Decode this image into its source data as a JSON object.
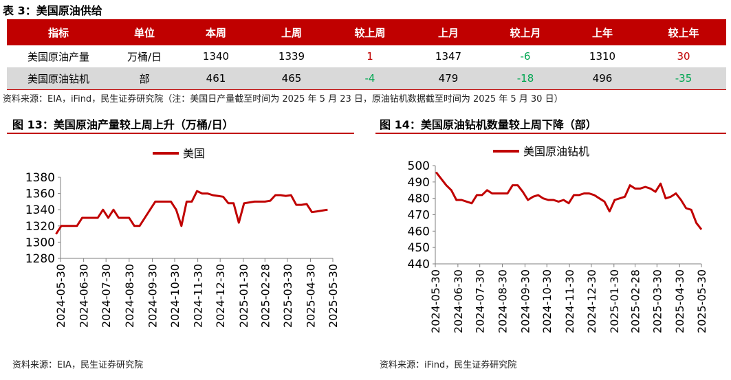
{
  "table": {
    "title": "表 3：美国原油供给",
    "headers": [
      "指标",
      "单位",
      "本周",
      "上周",
      "较上周",
      "上月",
      "较上月",
      "上年",
      "较上年"
    ],
    "rows": [
      [
        "美国原油产量",
        "万桶/日",
        "1340",
        "1339",
        "1",
        "1347",
        "-6",
        "1310",
        "30"
      ],
      [
        "美国原油钻机",
        "部",
        "461",
        "465",
        "-4",
        "479",
        "-18",
        "496",
        "-35"
      ]
    ],
    "note": "资料来源：EIA，iFind，民生证券研究院（注：美国日产量截至时间为 2025 年 5 月 23 日，原油钻机数据截至时间为 2025 年 5 月 30 日）"
  },
  "colors": {
    "accent": "#c00000",
    "positive": "#c00000",
    "negative": "#00a651",
    "row_alt": "#d9d9d9"
  },
  "chart_data": [
    {
      "type": "line",
      "title": "图 13：美国原油产量较上周上升（万桶/日）",
      "source": "资料来源：EIA，民生证券研究院",
      "x_ticks": [
        "2024-05-30",
        "2024-06-30",
        "2024-07-30",
        "2024-08-30",
        "2024-09-30",
        "2024-10-30",
        "2024-11-30",
        "2024-12-30",
        "2025-01-30",
        "2025-02-28",
        "2025-03-30",
        "2025-04-30",
        "2025-05-30"
      ],
      "ylim": [
        1280,
        1380
      ],
      "y_ticks": [
        1280,
        1300,
        1320,
        1340,
        1360,
        1380
      ],
      "legend_position": "top-center",
      "grid": false,
      "series": [
        {
          "name": "美国",
          "color": "#c00000",
          "x": [
            "2024-05-24",
            "2024-05-31",
            "2024-06-07",
            "2024-06-14",
            "2024-06-21",
            "2024-06-28",
            "2024-07-05",
            "2024-07-12",
            "2024-07-19",
            "2024-07-26",
            "2024-08-02",
            "2024-08-09",
            "2024-08-16",
            "2024-08-23",
            "2024-08-30",
            "2024-09-06",
            "2024-09-13",
            "2024-09-20",
            "2024-09-27",
            "2024-10-04",
            "2024-10-11",
            "2024-10-18",
            "2024-10-25",
            "2024-11-01",
            "2024-11-08",
            "2024-11-15",
            "2024-11-22",
            "2024-11-29",
            "2024-12-06",
            "2024-12-13",
            "2024-12-20",
            "2024-12-27",
            "2025-01-03",
            "2025-01-10",
            "2025-01-17",
            "2025-01-24",
            "2025-01-31",
            "2025-02-07",
            "2025-02-14",
            "2025-02-21",
            "2025-02-28",
            "2025-03-07",
            "2025-03-14",
            "2025-03-21",
            "2025-03-28",
            "2025-04-04",
            "2025-04-11",
            "2025-04-18",
            "2025-04-25",
            "2025-05-02",
            "2025-05-09",
            "2025-05-16",
            "2025-05-23"
          ],
          "values": [
            1310,
            1320,
            1320,
            1320,
            1320,
            1330,
            1330,
            1330,
            1330,
            1340,
            1330,
            1340,
            1330,
            1330,
            1330,
            1320,
            1320,
            1330,
            1340,
            1350,
            1350,
            1350,
            1350,
            1340,
            1320,
            1350,
            1350,
            1363,
            1360,
            1360,
            1358,
            1357,
            1356,
            1348,
            1348,
            1324,
            1348,
            1349,
            1350,
            1350,
            1350,
            1351,
            1358,
            1358,
            1357,
            1358,
            1346,
            1346,
            1347,
            1337,
            1338,
            1339,
            1340
          ]
        }
      ]
    },
    {
      "type": "line",
      "title": "图 14：美国原油钻机数量较上周下降（部）",
      "source": "资料来源：iFind，民生证券研究院",
      "x_ticks": [
        "2024-05-30",
        "2024-06-30",
        "2024-07-30",
        "2024-08-30",
        "2024-09-30",
        "2024-10-30",
        "2024-11-30",
        "2024-12-30",
        "2025-01-30",
        "2025-02-28",
        "2025-03-30",
        "2025-04-30",
        "2025-05-30"
      ],
      "ylim": [
        440,
        500
      ],
      "y_ticks": [
        440,
        450,
        460,
        470,
        480,
        490,
        500
      ],
      "legend_position": "top-center",
      "grid": false,
      "series": [
        {
          "name": "美国原油钻机",
          "color": "#c00000",
          "x": [
            "2024-05-31",
            "2024-06-07",
            "2024-06-14",
            "2024-06-21",
            "2024-06-28",
            "2024-07-05",
            "2024-07-12",
            "2024-07-19",
            "2024-07-26",
            "2024-08-02",
            "2024-08-09",
            "2024-08-16",
            "2024-08-23",
            "2024-08-30",
            "2024-09-06",
            "2024-09-13",
            "2024-09-20",
            "2024-09-27",
            "2024-10-04",
            "2024-10-11",
            "2024-10-18",
            "2024-10-25",
            "2024-11-01",
            "2024-11-08",
            "2024-11-15",
            "2024-11-22",
            "2024-11-29",
            "2024-12-06",
            "2024-12-13",
            "2024-12-20",
            "2024-12-27",
            "2025-01-03",
            "2025-01-10",
            "2025-01-17",
            "2025-01-24",
            "2025-01-31",
            "2025-02-07",
            "2025-02-14",
            "2025-02-21",
            "2025-02-28",
            "2025-03-07",
            "2025-03-14",
            "2025-03-21",
            "2025-03-28",
            "2025-04-04",
            "2025-04-11",
            "2025-04-18",
            "2025-04-25",
            "2025-05-02",
            "2025-05-09",
            "2025-05-16",
            "2025-05-23",
            "2025-05-30"
          ],
          "values": [
            496,
            492,
            488,
            485,
            479,
            479,
            478,
            477,
            482,
            482,
            485,
            483,
            483,
            483,
            483,
            488,
            488,
            484,
            479,
            481,
            482,
            480,
            479,
            479,
            478,
            479,
            477,
            482,
            482,
            483,
            483,
            482,
            480,
            478,
            472,
            479,
            480,
            481,
            488,
            486,
            486,
            487,
            486,
            484,
            489,
            480,
            481,
            483,
            479,
            474,
            473,
            465,
            461
          ]
        }
      ]
    }
  ]
}
